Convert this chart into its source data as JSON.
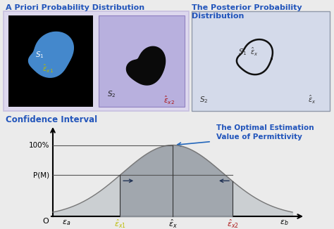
{
  "bg_color": "#ebebeb",
  "title_color": "#2255bb",
  "apriori_title": "A Priori Probability Distribution",
  "posterior_title": "The Posterior Probability\nDistribution",
  "confidence_title": "Confidence Interval",
  "optimal_label": "The Optimal Estimation\nValue of Permittivity",
  "lavender_outer_bg": "#ddd8ee",
  "lavender_outer_edge": "#c8c0e0",
  "black_box_bg": "#000000",
  "blue_shape_color": "#4488cc",
  "lavender2_bg": "#b8b0de",
  "lavender2_edge": "#9080c0",
  "posterior_bg": "#d4daea",
  "posterior_edge": "#9099aa",
  "curve_light": "#c8ccd0",
  "curve_dark": "#9aa0a8",
  "s1_color": "#ffffff",
  "s2_color": "#333333",
  "s1_post_color": "#333333",
  "s2_post_color": "#333333",
  "ex1_color": "#bbbb00",
  "ex2_color": "#aa1111",
  "arrow_blue": "#2266bb",
  "arrow_dark": "#223355",
  "xlabel_color": "#000000",
  "ylabel_color": "#000000"
}
